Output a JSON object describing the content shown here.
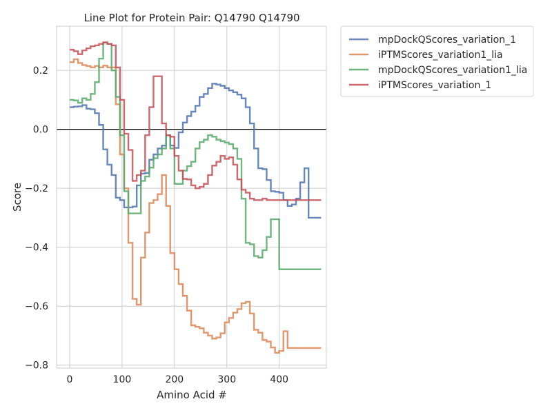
{
  "chart_data": {
    "type": "line",
    "title": "Line Plot for Protein Pair: Q14790 Q14790",
    "xlabel": "Amino Acid #",
    "ylabel": "Score",
    "xlim": [
      -25,
      490
    ],
    "ylim": [
      -0.81,
      0.35
    ],
    "x_ticks": [
      0,
      100,
      200,
      300,
      400
    ],
    "y_ticks": [
      -0.8,
      -0.6,
      -0.4,
      -0.2,
      0.0,
      0.2
    ],
    "y_tick_labels": [
      "−0.8",
      "−0.6",
      "−0.4",
      "−0.2",
      "0.0",
      "0.2"
    ],
    "x_tick_labels": [
      "0",
      "100",
      "200",
      "300",
      "400"
    ],
    "grid": true,
    "zero_line": 0,
    "legend_position": "outside-upper-right",
    "step_width": 8,
    "series": [
      {
        "name": "mpDockQScores_variation_1",
        "color": "#4c72b0",
        "x": [
          0,
          8,
          16,
          24,
          32,
          40,
          48,
          56,
          64,
          72,
          80,
          88,
          96,
          104,
          112,
          120,
          128,
          136,
          144,
          152,
          160,
          168,
          176,
          184,
          192,
          200,
          208,
          216,
          224,
          232,
          240,
          248,
          256,
          264,
          272,
          280,
          288,
          296,
          304,
          312,
          320,
          328,
          336,
          344,
          352,
          360,
          368,
          376,
          384,
          392,
          400,
          408,
          416,
          424,
          432,
          440,
          448,
          456,
          464,
          472
        ],
        "y": [
          0.075,
          0.077,
          0.078,
          0.082,
          0.07,
          0.068,
          0.055,
          0.015,
          -0.068,
          -0.12,
          -0.155,
          -0.232,
          -0.24,
          -0.265,
          -0.265,
          -0.262,
          -0.19,
          -0.15,
          -0.148,
          -0.103,
          -0.085,
          -0.065,
          -0.055,
          -0.02,
          -0.055,
          -0.063,
          -0.01,
          0.023,
          0.045,
          0.06,
          0.08,
          0.11,
          0.12,
          0.14,
          0.155,
          0.152,
          0.148,
          0.14,
          0.132,
          0.126,
          0.118,
          0.105,
          0.075,
          0.02,
          -0.065,
          -0.132,
          -0.135,
          -0.172,
          -0.21,
          -0.212,
          -0.215,
          -0.24,
          -0.26,
          -0.255,
          -0.235,
          -0.18,
          -0.132,
          -0.3,
          -0.3,
          -0.3
        ]
      },
      {
        "name": "iPTMScores_variation1_lia",
        "color": "#dd8452",
        "x": [
          0,
          8,
          16,
          24,
          32,
          40,
          48,
          56,
          64,
          72,
          80,
          88,
          96,
          104,
          112,
          120,
          128,
          136,
          144,
          152,
          160,
          168,
          176,
          184,
          192,
          200,
          208,
          216,
          224,
          232,
          240,
          248,
          256,
          264,
          272,
          280,
          288,
          296,
          304,
          312,
          320,
          328,
          336,
          344,
          352,
          360,
          368,
          376,
          384,
          392,
          400,
          408,
          416,
          424,
          432,
          440,
          448,
          456,
          464,
          472
        ],
        "y": [
          0.228,
          0.238,
          0.225,
          0.218,
          0.215,
          0.21,
          0.215,
          0.21,
          0.216,
          0.21,
          0.21,
          0.085,
          -0.085,
          -0.2,
          -0.385,
          -0.575,
          -0.595,
          -0.435,
          -0.35,
          -0.25,
          -0.24,
          -0.22,
          -0.155,
          -0.26,
          -0.42,
          -0.475,
          -0.525,
          -0.565,
          -0.615,
          -0.665,
          -0.67,
          -0.675,
          -0.69,
          -0.7,
          -0.71,
          -0.706,
          -0.692,
          -0.655,
          -0.64,
          -0.622,
          -0.61,
          -0.59,
          -0.585,
          -0.625,
          -0.68,
          -0.69,
          -0.715,
          -0.72,
          -0.74,
          -0.758,
          -0.752,
          -0.685,
          -0.742,
          -0.742,
          -0.742,
          -0.742,
          -0.742,
          -0.742,
          -0.742,
          -0.742
        ]
      },
      {
        "name": "mpDockQScores_variation1_lia",
        "color": "#55a868",
        "x": [
          0,
          8,
          16,
          24,
          32,
          40,
          48,
          56,
          64,
          72,
          80,
          88,
          96,
          104,
          112,
          120,
          128,
          136,
          144,
          152,
          160,
          168,
          176,
          184,
          192,
          200,
          208,
          216,
          224,
          232,
          240,
          248,
          256,
          264,
          272,
          280,
          288,
          296,
          304,
          312,
          320,
          328,
          336,
          344,
          352,
          360,
          368,
          376,
          384,
          392,
          400,
          408,
          416,
          424,
          432,
          440,
          448,
          456,
          464,
          472
        ],
        "y": [
          0.1,
          0.098,
          0.09,
          0.105,
          0.1,
          0.12,
          0.16,
          0.24,
          0.295,
          0.29,
          0.2,
          0.11,
          -0.02,
          -0.21,
          -0.285,
          -0.285,
          -0.285,
          -0.175,
          -0.16,
          -0.13,
          -0.098,
          -0.085,
          -0.065,
          -0.02,
          -0.065,
          -0.185,
          -0.185,
          -0.14,
          -0.125,
          -0.11,
          -0.065,
          -0.043,
          -0.035,
          -0.02,
          -0.025,
          -0.035,
          -0.04,
          -0.045,
          -0.05,
          -0.065,
          -0.1,
          -0.235,
          -0.385,
          -0.39,
          -0.43,
          -0.435,
          -0.41,
          -0.365,
          -0.305,
          -0.305,
          -0.475,
          -0.475,
          -0.475,
          -0.475,
          -0.475,
          -0.475,
          -0.475,
          -0.475,
          -0.475,
          -0.475
        ]
      },
      {
        "name": "iPTMScores_variation_1",
        "color": "#c44e52",
        "x": [
          0,
          8,
          16,
          24,
          32,
          40,
          48,
          56,
          64,
          72,
          80,
          88,
          96,
          104,
          112,
          120,
          128,
          136,
          144,
          152,
          160,
          168,
          176,
          184,
          192,
          200,
          208,
          216,
          224,
          232,
          240,
          248,
          256,
          264,
          272,
          280,
          288,
          296,
          304,
          312,
          320,
          328,
          336,
          344,
          352,
          360,
          368,
          376,
          384,
          392,
          400,
          408,
          416,
          424,
          432,
          440,
          448,
          456,
          464,
          472
        ],
        "y": [
          0.27,
          0.265,
          0.255,
          0.268,
          0.275,
          0.282,
          0.285,
          0.29,
          0.295,
          0.29,
          0.285,
          0.21,
          0.1,
          -0.015,
          -0.07,
          -0.175,
          -0.155,
          -0.14,
          -0.02,
          0.075,
          0.18,
          0.18,
          0.02,
          -0.02,
          -0.025,
          -0.09,
          -0.14,
          -0.168,
          -0.17,
          -0.19,
          -0.2,
          -0.195,
          -0.185,
          -0.155,
          -0.123,
          -0.11,
          -0.09,
          -0.1,
          -0.095,
          -0.12,
          -0.17,
          -0.205,
          -0.215,
          -0.235,
          -0.24,
          -0.24,
          -0.235,
          -0.24,
          -0.24,
          -0.24,
          -0.24,
          -0.24,
          -0.24,
          -0.24,
          -0.24,
          -0.24,
          -0.24,
          -0.24,
          -0.24,
          -0.24
        ]
      }
    ]
  }
}
